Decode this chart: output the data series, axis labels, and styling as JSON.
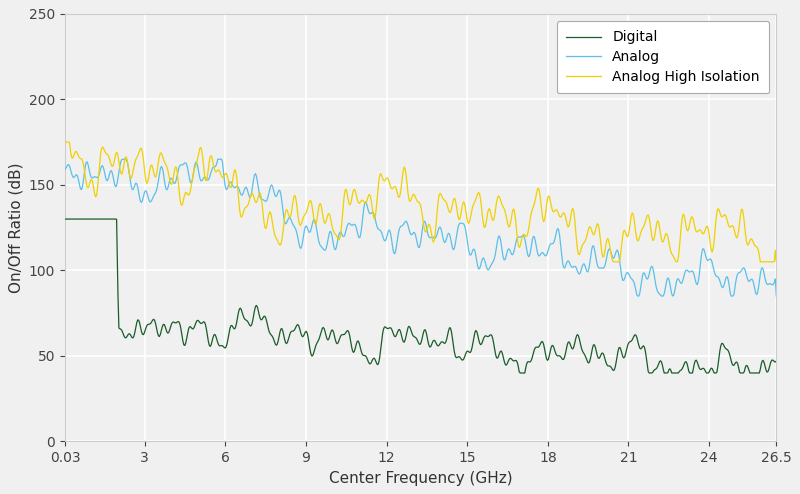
{
  "xlabel": "Center Frequency (GHz)",
  "ylabel": "On/Off Ratio (dB)",
  "xlim": [
    0.03,
    26.5
  ],
  "ylim": [
    0,
    250
  ],
  "yticks": [
    0,
    50,
    100,
    150,
    200,
    250
  ],
  "xticks": [
    0.03,
    3,
    6,
    9,
    12,
    15,
    18,
    21,
    24,
    26.5
  ],
  "xticklabels": [
    "0.03",
    "3",
    "6",
    "9",
    "12",
    "15",
    "18",
    "21",
    "24",
    "26.5"
  ],
  "colors": {
    "digital": "#1a5c2a",
    "analog": "#5bbfea",
    "analog_hi": "#f0d000"
  },
  "legend": [
    "Digital",
    "Analog",
    "Analog High Isolation"
  ],
  "bg_color": "#f0f0f0",
  "grid_color": "#ffffff",
  "linewidth": 0.9
}
